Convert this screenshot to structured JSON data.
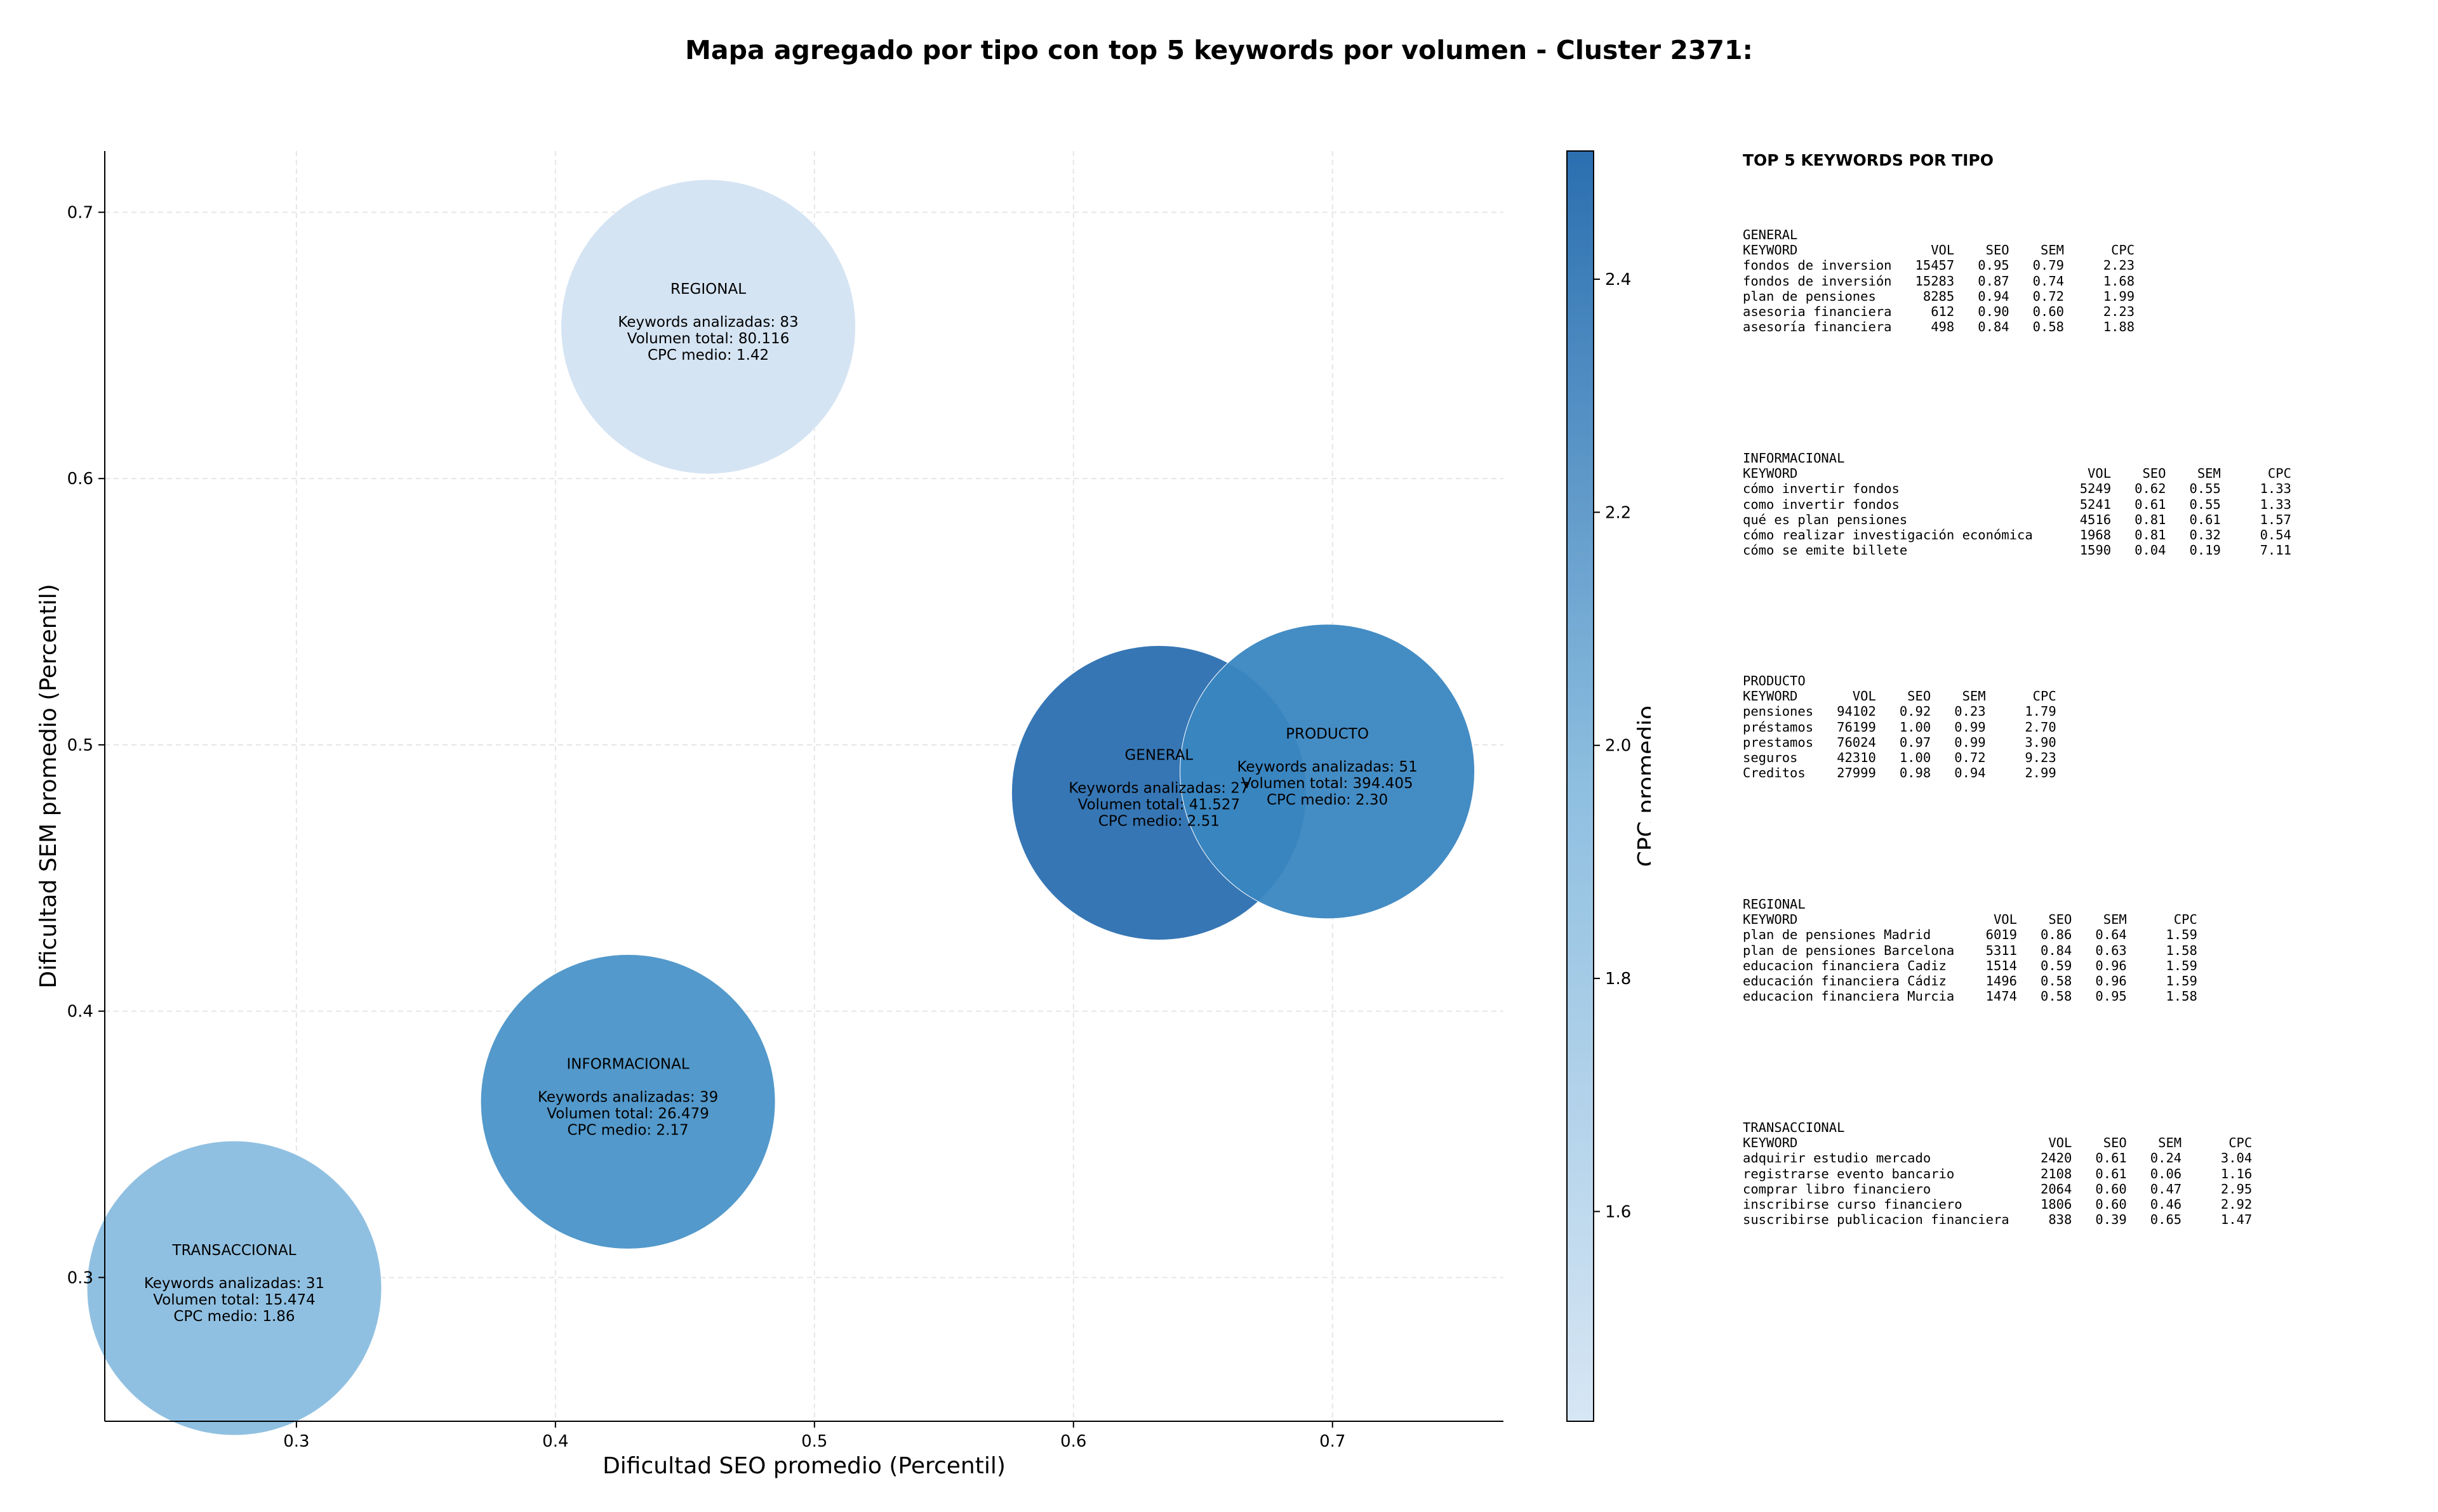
{
  "title": "Mapa agregado por tipo con top 5 keywords por volumen - Cluster 2371:",
  "chart_data": {
    "type": "scatter",
    "subtype": "bubble",
    "xlabel": "Dificultad SEO promedio (Percentil)",
    "ylabel": "Dificultad SEM promedio (Percentil)",
    "xlim": [
      0.226,
      0.766
    ],
    "ylim": [
      0.246,
      0.723
    ],
    "xticks": [
      "0.3",
      "0.4",
      "0.5",
      "0.6",
      "0.7"
    ],
    "yticks": [
      "0.3",
      "0.4",
      "0.5",
      "0.6",
      "0.7"
    ],
    "grid": true,
    "colorbar": {
      "label": "CPC promedio",
      "range": [
        1.42,
        2.51
      ],
      "ticks": [
        "1.6",
        "1.8",
        "2.0",
        "2.2",
        "2.4"
      ],
      "colormap": [
        "#c6dbef",
        "#2b6fb0"
      ]
    },
    "points": [
      {
        "name": "REGIONAL",
        "x": 0.459,
        "y": 0.657,
        "cpc": 1.42,
        "color": "#d3e3f2",
        "lines": [
          "REGIONAL",
          "",
          "Keywords analizadas: 83",
          "Volumen total: 80.116",
          "CPC medio: 1.42"
        ]
      },
      {
        "name": "INFORMACIONAL",
        "x": 0.428,
        "y": 0.366,
        "cpc": 2.17,
        "color": "#4a93c8",
        "lines": [
          "INFORMACIONAL",
          "",
          "Keywords analizadas: 39",
          "Volumen total: 26.479",
          "CPC medio: 2.17"
        ]
      },
      {
        "name": "TRANSACCIONAL",
        "x": 0.276,
        "y": 0.296,
        "cpc": 1.86,
        "color": "#8abddf",
        "lines": [
          "TRANSACCIONAL",
          "",
          "Keywords analizadas: 31",
          "Volumen total: 15.474",
          "CPC medio: 1.86"
        ]
      },
      {
        "name": "GENERAL",
        "x": 0.633,
        "y": 0.482,
        "cpc": 2.51,
        "color": "#2b6fb0",
        "lines": [
          "GENERAL",
          "",
          "Keywords analizadas: 27",
          "Volumen total: 41.527",
          "CPC medio: 2.51"
        ]
      },
      {
        "name": "PRODUCTO",
        "x": 0.698,
        "y": 0.49,
        "cpc": 2.3,
        "color": "#3a86c1",
        "lines": [
          "PRODUCTO",
          "",
          "Keywords analizadas: 51",
          "Volumen total: 394.405",
          "CPC medio: 2.30"
        ]
      }
    ]
  },
  "side_panel": {
    "title": "TOP 5 KEYWORDS POR TIPO",
    "blocks": [
      {
        "name": "GENERAL",
        "lines": [
          "GENERAL",
          "KEYWORD                 VOL    SEO    SEM      CPC",
          "fondos de inversion   15457   0.95   0.79     2.23",
          "fondos de inversión   15283   0.87   0.74     1.68",
          "plan de pensiones      8285   0.94   0.72     1.99",
          "asesoria financiera     612   0.90   0.60     2.23",
          "asesoría financiera     498   0.84   0.58     1.88"
        ]
      },
      {
        "name": "INFORMACIONAL",
        "lines": [
          "INFORMACIONAL",
          "KEYWORD                                     VOL    SEO    SEM      CPC",
          "cómo invertir fondos                       5249   0.62   0.55     1.33",
          "como invertir fondos                       5241   0.61   0.55     1.33",
          "qué es plan pensiones                      4516   0.81   0.61     1.57",
          "cómo realizar investigación económica      1968   0.81   0.32     0.54",
          "cómo se emite billete                      1590   0.04   0.19     7.11"
        ]
      },
      {
        "name": "PRODUCTO",
        "lines": [
          "PRODUCTO",
          "KEYWORD       VOL    SEO    SEM      CPC",
          "pensiones   94102   0.92   0.23     1.79",
          "préstamos   76199   1.00   0.99     2.70",
          "prestamos   76024   0.97   0.99     3.90",
          "seguros     42310   1.00   0.72     9.23",
          "Creditos    27999   0.98   0.94     2.99"
        ]
      },
      {
        "name": "REGIONAL",
        "lines": [
          "REGIONAL",
          "KEYWORD                         VOL    SEO    SEM      CPC",
          "plan de pensiones Madrid       6019   0.86   0.64     1.59",
          "plan de pensiones Barcelona    5311   0.84   0.63     1.58",
          "educacion financiera Cadiz     1514   0.59   0.96     1.59",
          "educación financiera Cádiz     1496   0.58   0.96     1.59",
          "educacion financiera Murcia    1474   0.58   0.95     1.58"
        ]
      },
      {
        "name": "TRANSACCIONAL",
        "lines": [
          "TRANSACCIONAL",
          "KEYWORD                                VOL    SEO    SEM      CPC",
          "adquirir estudio mercado              2420   0.61   0.24     3.04",
          "registrarse evento bancario           2108   0.61   0.06     1.16",
          "comprar libro financiero              2064   0.60   0.47     2.95",
          "inscribirse curso financiero          1806   0.60   0.46     2.92",
          "suscribirse publicacion financiera     838   0.39   0.65     1.47"
        ]
      }
    ]
  }
}
